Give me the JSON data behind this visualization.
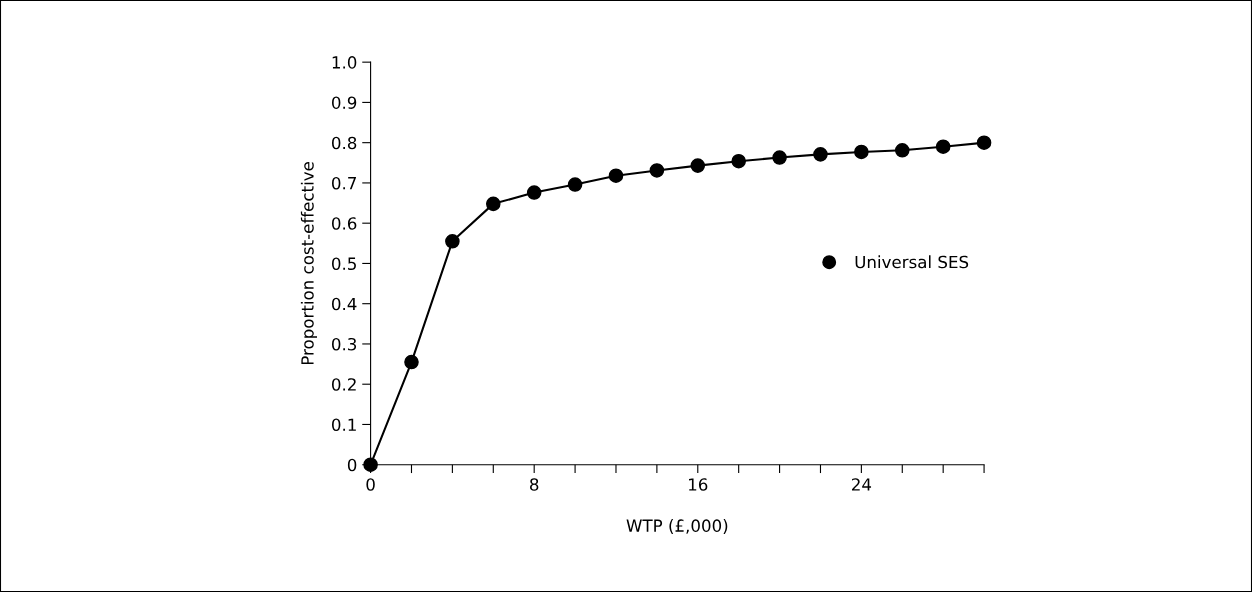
{
  "chart_data": {
    "type": "line",
    "xlabel": "WTP (£,000)",
    "ylabel": "Proportion cost-effective",
    "x": [
      0,
      2,
      4,
      6,
      8,
      10,
      12,
      14,
      16,
      18,
      20,
      22,
      24,
      26,
      28,
      30
    ],
    "series": [
      {
        "name": "Universal SES",
        "color": "#000000",
        "values": [
          0,
          0.255,
          0.555,
          0.648,
          0.676,
          0.696,
          0.718,
          0.731,
          0.743,
          0.754,
          0.763,
          0.771,
          0.777,
          0.781,
          0.79,
          0.8
        ]
      }
    ],
    "marker": "circle",
    "line_style": "solid",
    "grid": false,
    "legend": "right",
    "xlim": [
      0,
      30
    ],
    "ylim": [
      0,
      1.0
    ],
    "xticks": [
      0,
      {
        "value": 2,
        "label": null
      },
      {
        "value": 4,
        "label": null
      },
      {
        "value": 6,
        "label": null
      },
      8,
      {
        "value": 10,
        "label": null
      },
      {
        "value": 12,
        "label": null
      },
      {
        "value": 14,
        "label": null
      },
      16,
      {
        "value": 18,
        "label": null
      },
      {
        "value": 20,
        "label": null
      },
      {
        "value": 22,
        "label": null
      },
      24,
      {
        "value": 26,
        "label": null
      },
      {
        "value": 28,
        "label": null
      },
      {
        "value": 30,
        "label": null
      }
    ],
    "yticks": [
      0,
      0.1,
      0.2,
      0.3,
      0.4,
      0.5,
      0.6,
      0.7,
      0.8,
      0.9,
      {
        "value": 1.0,
        "label": "1.0"
      }
    ]
  }
}
